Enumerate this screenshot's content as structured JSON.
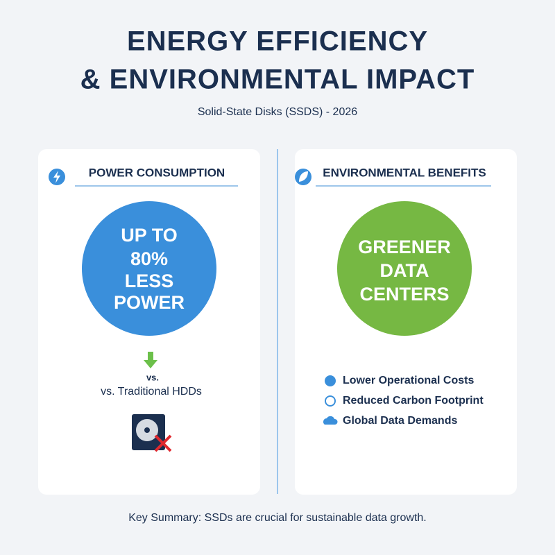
{
  "header": {
    "title": [
      "ENERGY EFFICIENCY",
      "& ENVIRONMENTAL IMPACT"
    ],
    "subtitle": "Solid-State Disks (SSDS) - 2026"
  },
  "panels": [
    {
      "heading": "POWER CONSUMPTION",
      "highlight": [
        "UP TO",
        "80%",
        "LESS",
        "POWER"
      ],
      "arrow_label": "vs.",
      "comparison": "vs. Traditional HDDs"
    },
    {
      "heading": "ENVIRONMENTAL BENEFITS",
      "highlight": [
        "GREENER",
        "DATA",
        "CENTERS"
      ],
      "items": [
        "Lower Operational Costs",
        "Reduced Carbon Footprint",
        "Global Data Demands"
      ]
    }
  ],
  "footer": "Key Summary: SSDs are crucial for sustainable data growth."
}
